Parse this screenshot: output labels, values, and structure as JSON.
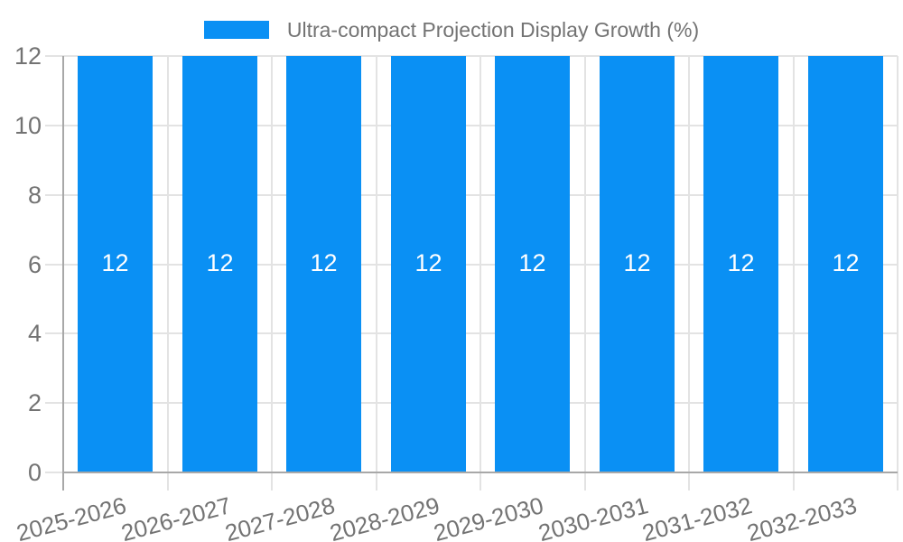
{
  "chart_data": {
    "type": "bar",
    "title": "Ultra-compact Projection Display Growth (%)",
    "xlabel": "",
    "ylabel": "",
    "categories": [
      "2025-2026",
      "2026-2027",
      "2027-2028",
      "2028-2029",
      "2029-2030",
      "2030-2031",
      "2031-2032",
      "2032-2033"
    ],
    "series": [
      {
        "name": "Ultra-compact Projection Display Growth (%)",
        "values": [
          12,
          12,
          12,
          12,
          12,
          12,
          12,
          12
        ]
      }
    ],
    "bar_labels": [
      "12",
      "12",
      "12",
      "12",
      "12",
      "12",
      "12",
      "12"
    ],
    "ylim": [
      0,
      12
    ],
    "yticks": [
      0,
      2,
      4,
      6,
      8,
      10,
      12
    ],
    "grid": true,
    "legend_position": "top-center",
    "colors": {
      "bar": "#0a90f4",
      "bar_label": "#ffffff",
      "axis_text": "#737373",
      "grid_line": "#e3e3e3",
      "axis_line": "#a8a8a8",
      "background": "#ffffff"
    }
  }
}
